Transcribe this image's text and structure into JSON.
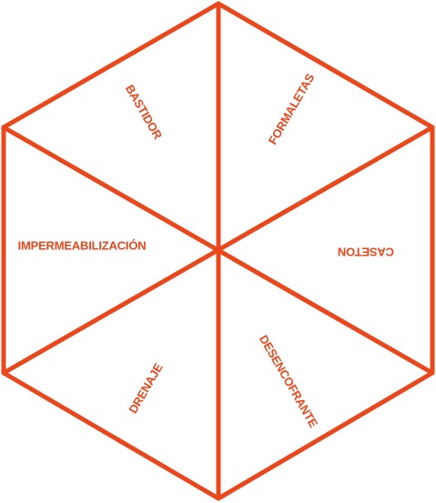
{
  "accent_color": "#e8481c",
  "background_color": "#ffffff",
  "segments": [
    {
      "label": "BASTIDOR"
    },
    {
      "label": "FORMALETAS"
    },
    {
      "label": "CASETON"
    },
    {
      "label": "DESENCOFRANTE"
    },
    {
      "label": "DRENAJE"
    },
    {
      "label": "IMPERMEABILIZACIÓN"
    }
  ]
}
